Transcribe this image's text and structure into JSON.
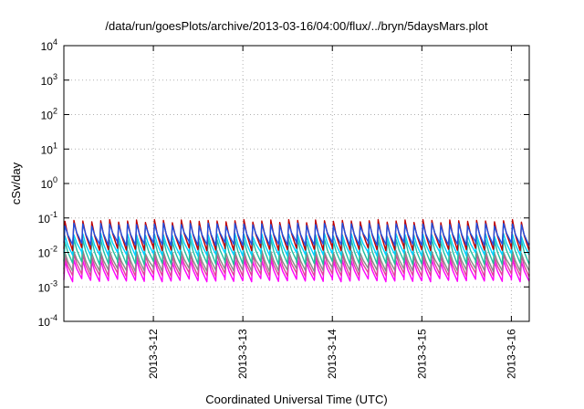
{
  "chart_data": {
    "type": "line",
    "title": "/data/run/goesPlots/archive/2013-03-16/04:00/flux/../bryn/5daysMars.plot",
    "xlabel": "Coordinated Universal Time (UTC)",
    "ylabel": "cSv/day",
    "y_scale": "log",
    "ylim_exponent": [
      -4,
      4
    ],
    "y_ticks": [
      {
        "base": "10",
        "exp": "-4",
        "value_exp": -4
      },
      {
        "base": "10",
        "exp": "-3",
        "value_exp": -3
      },
      {
        "base": "10",
        "exp": "-2",
        "value_exp": -2
      },
      {
        "base": "10",
        "exp": "-1",
        "value_exp": -1
      },
      {
        "base": "10",
        "exp": "0",
        "value_exp": 0
      },
      {
        "base": "10",
        "exp": "1",
        "value_exp": 1
      },
      {
        "base": "10",
        "exp": "2",
        "value_exp": 2
      },
      {
        "base": "10",
        "exp": "3",
        "value_exp": 3
      },
      {
        "base": "10",
        "exp": "4",
        "value_exp": 4
      }
    ],
    "x_range_days": [
      0,
      5.2
    ],
    "x_ticks": [
      {
        "label": "2013-3-12",
        "day": 1
      },
      {
        "label": "2013-3-13",
        "day": 2
      },
      {
        "label": "2013-3-14",
        "day": 3
      },
      {
        "label": "2013-3-15",
        "day": 4
      },
      {
        "label": "2013-3-16",
        "day": 5
      }
    ],
    "grid": true,
    "cycles_per_day": 10,
    "series": [
      {
        "color": "#ff00ff",
        "peak_exp": -2.2,
        "trough_exp": -2.8,
        "dip_exp": -2.7
      },
      {
        "color": "#e0409a",
        "peak_exp": -2.05,
        "trough_exp": -2.65,
        "dip_exp": -2.55
      },
      {
        "color": "#888888",
        "peak_exp": -1.95,
        "trough_exp": -2.5,
        "dip_exp": -2.45
      },
      {
        "color": "#20c0a0",
        "peak_exp": -1.6,
        "trough_exp": -2.3,
        "dip_exp": -2.2
      },
      {
        "color": "#00d0ff",
        "peak_exp": -1.45,
        "trough_exp": -2.05,
        "dip_exp": -2.0
      },
      {
        "color": "#c00000",
        "peak_exp": -1.05,
        "trough_exp": -1.9,
        "dip_exp": -1.85
      },
      {
        "color": "#2050e0",
        "peak_exp": -1.15,
        "trough_exp": -1.75,
        "dip_exp": -1.7
      }
    ]
  }
}
